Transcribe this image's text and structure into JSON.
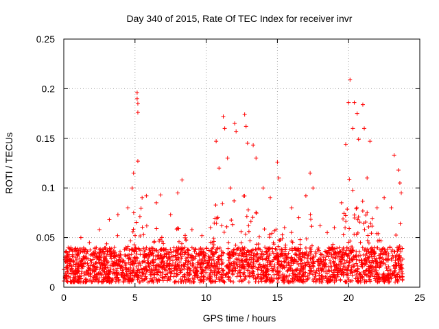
{
  "chart_data": {
    "type": "scatter",
    "title": "Day 340 of 2015, Rate Of TEC Index for receiver invr",
    "xlabel": "GPS time / hours",
    "ylabel": "ROTI / TECUs",
    "xlim": [
      0,
      25
    ],
    "ylim": [
      0,
      0.25
    ],
    "xticks": [
      0,
      5,
      10,
      15,
      20,
      25
    ],
    "xtick_labels": [
      "0",
      "5",
      "10",
      "15",
      "20",
      "25"
    ],
    "yticks": [
      0,
      0.05,
      0.1,
      0.15,
      0.2,
      0.25
    ],
    "ytick_labels": [
      "0",
      "0.05",
      "0.1",
      "0.15",
      "0.2",
      "0.25"
    ],
    "grid": true,
    "marker": "+",
    "series": [
      {
        "name": "ROTI",
        "color": "#ff0000",
        "points": [
          {
            "x": 0.1,
            "y": 0.01
          },
          {
            "x": 0.2,
            "y": 0.035
          },
          {
            "x": 0.5,
            "y": 0.04
          },
          {
            "x": 1.2,
            "y": 0.05
          },
          {
            "x": 1.8,
            "y": 0.045
          },
          {
            "x": 2.5,
            "y": 0.058
          },
          {
            "x": 3.2,
            "y": 0.068
          },
          {
            "x": 3.8,
            "y": 0.073
          },
          {
            "x": 4.5,
            "y": 0.08
          },
          {
            "x": 4.8,
            "y": 0.1
          },
          {
            "x": 4.9,
            "y": 0.115
          },
          {
            "x": 5.15,
            "y": 0.196
          },
          {
            "x": 5.15,
            "y": 0.19
          },
          {
            "x": 5.2,
            "y": 0.185
          },
          {
            "x": 5.2,
            "y": 0.176
          },
          {
            "x": 5.2,
            "y": 0.127
          },
          {
            "x": 5.5,
            "y": 0.09
          },
          {
            "x": 5.8,
            "y": 0.092
          },
          {
            "x": 6.5,
            "y": 0.085
          },
          {
            "x": 6.8,
            "y": 0.093
          },
          {
            "x": 7.5,
            "y": 0.073
          },
          {
            "x": 8.0,
            "y": 0.095
          },
          {
            "x": 8.3,
            "y": 0.108
          },
          {
            "x": 9.0,
            "y": 0.058
          },
          {
            "x": 9.7,
            "y": 0.052
          },
          {
            "x": 10.3,
            "y": 0.06
          },
          {
            "x": 10.7,
            "y": 0.147
          },
          {
            "x": 10.9,
            "y": 0.12
          },
          {
            "x": 11.2,
            "y": 0.172
          },
          {
            "x": 11.3,
            "y": 0.16
          },
          {
            "x": 11.5,
            "y": 0.13
          },
          {
            "x": 11.7,
            "y": 0.1
          },
          {
            "x": 12.0,
            "y": 0.165
          },
          {
            "x": 12.1,
            "y": 0.157
          },
          {
            "x": 12.7,
            "y": 0.174
          },
          {
            "x": 12.8,
            "y": 0.162
          },
          {
            "x": 12.9,
            "y": 0.145
          },
          {
            "x": 13.3,
            "y": 0.143
          },
          {
            "x": 13.5,
            "y": 0.13
          },
          {
            "x": 14.0,
            "y": 0.1
          },
          {
            "x": 14.5,
            "y": 0.09
          },
          {
            "x": 15.0,
            "y": 0.126
          },
          {
            "x": 15.1,
            "y": 0.11
          },
          {
            "x": 15.5,
            "y": 0.06
          },
          {
            "x": 16.0,
            "y": 0.08
          },
          {
            "x": 16.5,
            "y": 0.07
          },
          {
            "x": 17.0,
            "y": 0.092
          },
          {
            "x": 17.3,
            "y": 0.115
          },
          {
            "x": 17.5,
            "y": 0.1
          },
          {
            "x": 18.0,
            "y": 0.062
          },
          {
            "x": 18.5,
            "y": 0.055
          },
          {
            "x": 19.0,
            "y": 0.06
          },
          {
            "x": 19.5,
            "y": 0.085
          },
          {
            "x": 19.8,
            "y": 0.144
          },
          {
            "x": 20.0,
            "y": 0.186
          },
          {
            "x": 20.1,
            "y": 0.209
          },
          {
            "x": 20.3,
            "y": 0.16
          },
          {
            "x": 20.4,
            "y": 0.186
          },
          {
            "x": 20.6,
            "y": 0.175
          },
          {
            "x": 20.7,
            "y": 0.149
          },
          {
            "x": 21.0,
            "y": 0.184
          },
          {
            "x": 21.1,
            "y": 0.16
          },
          {
            "x": 21.3,
            "y": 0.11
          },
          {
            "x": 21.5,
            "y": 0.147
          },
          {
            "x": 22.0,
            "y": 0.08
          },
          {
            "x": 22.5,
            "y": 0.09
          },
          {
            "x": 23.0,
            "y": 0.08
          },
          {
            "x": 23.2,
            "y": 0.133
          },
          {
            "x": 23.5,
            "y": 0.118
          },
          {
            "x": 23.6,
            "y": 0.105
          },
          {
            "x": 23.7,
            "y": 0.095
          }
        ],
        "dense_band": {
          "x_start": 0,
          "x_end": 23.8,
          "description": "dense cloud of points at nearly every time step",
          "typical_min": 0.005,
          "typical_max": 0.04
        }
      }
    ]
  }
}
